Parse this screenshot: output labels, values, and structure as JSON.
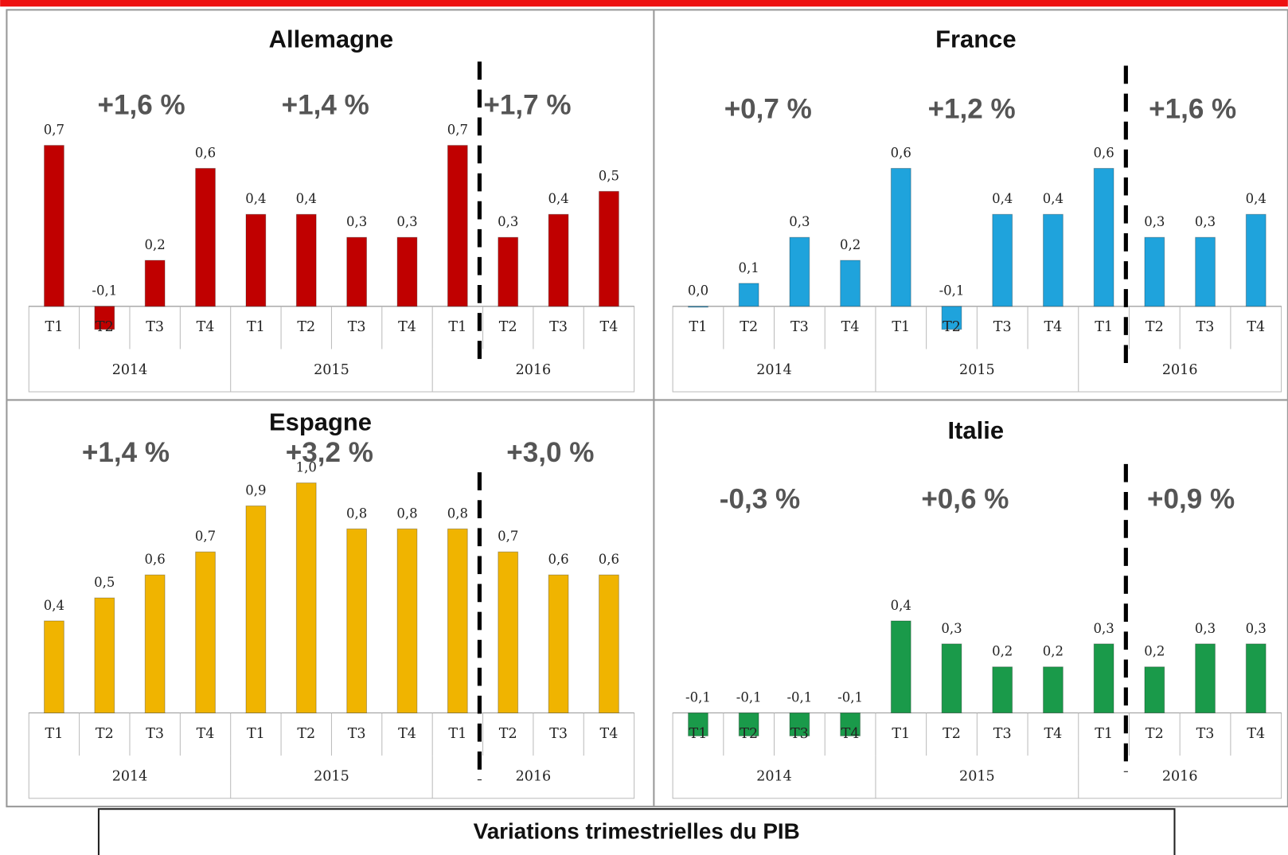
{
  "chart_data": [
    {
      "type": "bar",
      "title": "Allemagne",
      "color": "#c00000",
      "categories": [
        "T1",
        "T2",
        "T3",
        "T4",
        "T1",
        "T2",
        "T3",
        "T4",
        "T1",
        "T2",
        "T3",
        "T4"
      ],
      "groups": [
        "2014",
        "2015",
        "2016"
      ],
      "values": [
        0.7,
        -0.1,
        0.2,
        0.6,
        0.4,
        0.4,
        0.3,
        0.3,
        0.7,
        0.3,
        0.4,
        0.5
      ],
      "value_labels": [
        "0,7",
        "-0,1",
        "0,2",
        "0,6",
        "0,4",
        "0,4",
        "0,3",
        "0,3",
        "0,7",
        "0,3",
        "0,4",
        "0,5"
      ],
      "annotations": [
        "+1,6 %",
        "+1,4 %",
        "+1,7 %"
      ]
    },
    {
      "type": "bar",
      "title": "France",
      "color": "#1fa3dc",
      "categories": [
        "T1",
        "T2",
        "T3",
        "T4",
        "T1",
        "T2",
        "T3",
        "T4",
        "T1",
        "T2",
        "T3",
        "T4"
      ],
      "groups": [
        "2014",
        "2015",
        "2016"
      ],
      "values": [
        0.0,
        0.1,
        0.3,
        0.2,
        0.6,
        -0.1,
        0.4,
        0.4,
        0.6,
        0.3,
        0.3,
        0.4
      ],
      "value_labels": [
        "0,0",
        "0,1",
        "0,3",
        "0,2",
        "0,6",
        "-0,1",
        "0,4",
        "0,4",
        "0,6",
        "0,3",
        "0,3",
        "0,4"
      ],
      "annotations": [
        "+0,7 %",
        "+1,2 %",
        "+1,6 %"
      ]
    },
    {
      "type": "bar",
      "title": "Espagne",
      "color": "#f0b400",
      "categories": [
        "T1",
        "T2",
        "T3",
        "T4",
        "T1",
        "T2",
        "T3",
        "T4",
        "T1",
        "T2",
        "T3",
        "T4"
      ],
      "groups": [
        "2014",
        "2015",
        "2016"
      ],
      "values": [
        0.4,
        0.5,
        0.6,
        0.7,
        0.9,
        1.0,
        0.8,
        0.8,
        0.8,
        0.7,
        0.6,
        0.6
      ],
      "value_labels": [
        "0,4",
        "0,5",
        "0,6",
        "0,7",
        "0,9",
        "1,0",
        "0,8",
        "0,8",
        "0,8",
        "0,7",
        "0,6",
        "0,6"
      ],
      "annotations": [
        "+1,4 %",
        "+3,2 %",
        "+3,0 %"
      ]
    },
    {
      "type": "bar",
      "title": "Italie",
      "color": "#1a9a4a",
      "categories": [
        "T1",
        "T2",
        "T3",
        "T4",
        "T1",
        "T2",
        "T3",
        "T4",
        "T1",
        "T2",
        "T3",
        "T4"
      ],
      "groups": [
        "2014",
        "2015",
        "2016"
      ],
      "values": [
        -0.1,
        -0.1,
        -0.1,
        -0.1,
        0.4,
        0.3,
        0.2,
        0.2,
        0.3,
        0.2,
        0.3,
        0.3
      ],
      "value_labels": [
        "-0,1",
        "-0,1",
        "-0,1",
        "-0,1",
        "0,4",
        "0,3",
        "0,2",
        "0,2",
        "0,3",
        "0,2",
        "0,3",
        "0,3"
      ],
      "annotations": [
        "-0,3 %",
        "+0,6 %",
        "+0,9 %"
      ]
    }
  ],
  "caption": "Variations trimestrielles du PIB"
}
